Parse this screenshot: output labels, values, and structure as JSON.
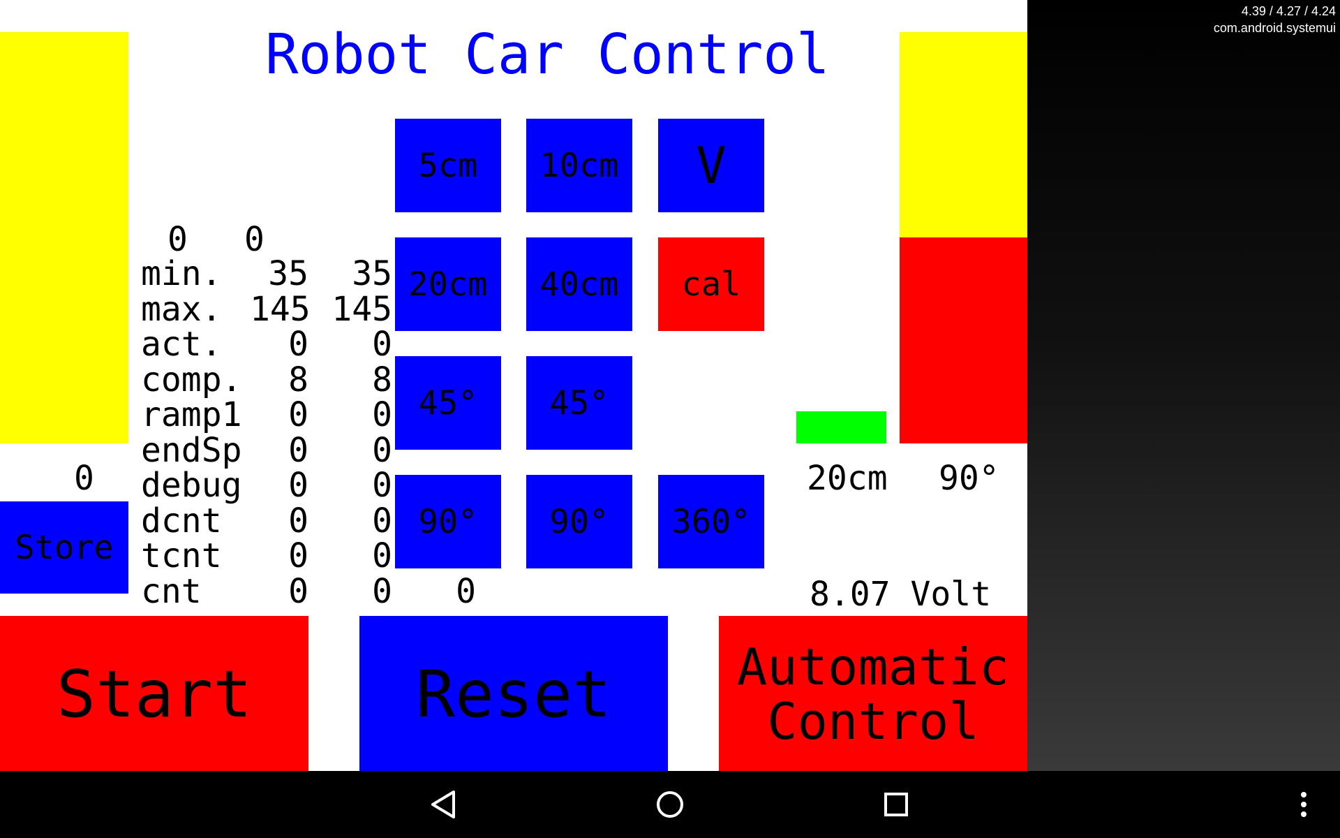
{
  "app": {
    "title": "Robot Car Control",
    "store_button": "Store",
    "store_value": "0",
    "top_values": [
      "0",
      "0"
    ],
    "stats": [
      {
        "label": "min.",
        "left": "35",
        "right": "35",
        "extra": ""
      },
      {
        "label": "max.",
        "left": "145",
        "right": "145",
        "extra": ""
      },
      {
        "label": "act.",
        "left": "0",
        "right": "0",
        "extra": ""
      },
      {
        "label": "comp.",
        "left": "8",
        "right": "8",
        "extra": ""
      },
      {
        "label": "ramp1",
        "left": "0",
        "right": "0",
        "extra": ""
      },
      {
        "label": "endSp",
        "left": "0",
        "right": "0",
        "extra": ""
      },
      {
        "label": "debug",
        "left": "0",
        "right": "0",
        "extra": ""
      },
      {
        "label": "dcnt",
        "left": "0",
        "right": "0",
        "extra": ""
      },
      {
        "label": "tcnt",
        "left": "0",
        "right": "0",
        "extra": ""
      },
      {
        "label": "cnt",
        "left": "0",
        "right": "0",
        "extra": "0"
      }
    ],
    "grid_buttons": {
      "b5cm": "5cm",
      "b10cm": "10cm",
      "bV": "V",
      "b20cm": "20cm",
      "b40cm": "40cm",
      "bcal": "cal",
      "b45left": "45°",
      "b45right": "45°",
      "b90left": "90°",
      "b90right": "90°",
      "b360": "360°"
    },
    "distance_readout": "20cm",
    "angle_readout": "90°",
    "voltage_readout": "8.07 Volt",
    "start_button": "Start",
    "reset_button": "Reset",
    "auto_button_line1": "Automatic",
    "auto_button_line2": "Control",
    "right_gauge_level": 0.5,
    "colors": {
      "yellow": "#ffff00",
      "red": "#ff0000",
      "blue": "#0000ff",
      "green": "#00ff00",
      "title": "#0000ff"
    }
  },
  "system": {
    "info_line1": "4.39 / 4.27 / 4.24",
    "info_line2": "com.android.systemui",
    "nav_icons": [
      "back-icon",
      "home-icon",
      "recents-icon",
      "overflow-menu-icon"
    ]
  }
}
